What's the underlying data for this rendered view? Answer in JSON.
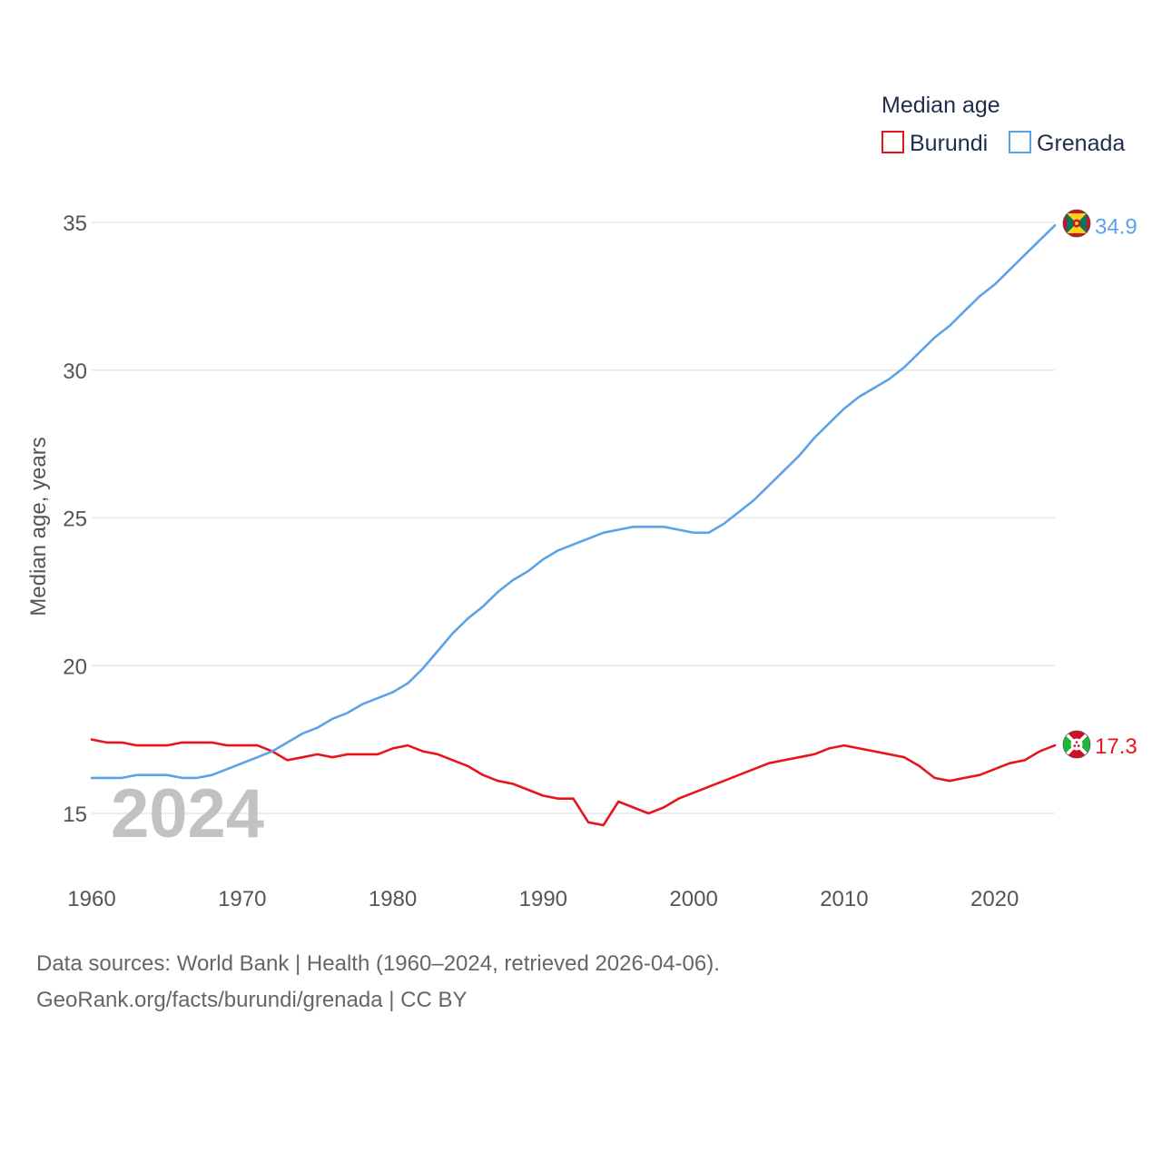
{
  "chart_data": {
    "type": "line",
    "title": "",
    "ylabel": "Median age, years",
    "xlabel": "",
    "xlim": [
      1960,
      2024
    ],
    "ylim": [
      13,
      36.5
    ],
    "x_ticks": [
      1960,
      1970,
      1980,
      1990,
      2000,
      2010,
      2020
    ],
    "y_ticks": [
      15,
      20,
      25,
      30,
      35
    ],
    "grid": true,
    "legend": {
      "title": "Median age",
      "position": "top-right"
    },
    "year_label": "2024",
    "x": [
      1960,
      1961,
      1962,
      1963,
      1964,
      1965,
      1966,
      1967,
      1968,
      1969,
      1970,
      1971,
      1972,
      1973,
      1974,
      1975,
      1976,
      1977,
      1978,
      1979,
      1980,
      1981,
      1982,
      1983,
      1984,
      1985,
      1986,
      1987,
      1988,
      1989,
      1990,
      1991,
      1992,
      1993,
      1994,
      1995,
      1996,
      1997,
      1998,
      1999,
      2000,
      2001,
      2002,
      2003,
      2004,
      2005,
      2006,
      2007,
      2008,
      2009,
      2010,
      2011,
      2012,
      2013,
      2014,
      2015,
      2016,
      2017,
      2018,
      2019,
      2020,
      2021,
      2022,
      2023,
      2024
    ],
    "series": [
      {
        "name": "Burundi",
        "color": "#e8141c",
        "end_label": "17.3",
        "values": [
          17.5,
          17.4,
          17.4,
          17.3,
          17.3,
          17.3,
          17.4,
          17.4,
          17.4,
          17.3,
          17.3,
          17.3,
          17.1,
          16.8,
          16.9,
          17.0,
          16.9,
          17.0,
          17.0,
          17.0,
          17.2,
          17.3,
          17.1,
          17.0,
          16.8,
          16.6,
          16.3,
          16.1,
          16.0,
          15.8,
          15.6,
          15.5,
          15.5,
          14.7,
          14.6,
          15.4,
          15.2,
          15.0,
          15.2,
          15.5,
          15.7,
          15.9,
          16.1,
          16.3,
          16.5,
          16.7,
          16.8,
          16.9,
          17.0,
          17.2,
          17.3,
          17.2,
          17.1,
          17.0,
          16.9,
          16.6,
          16.2,
          16.1,
          16.2,
          16.3,
          16.5,
          16.7,
          16.8,
          17.1,
          17.3
        ]
      },
      {
        "name": "Grenada",
        "color": "#5ba3e6",
        "end_label": "34.9",
        "values": [
          16.2,
          16.2,
          16.2,
          16.3,
          16.3,
          16.3,
          16.2,
          16.2,
          16.3,
          16.5,
          16.7,
          16.9,
          17.1,
          17.4,
          17.7,
          17.9,
          18.2,
          18.4,
          18.7,
          18.9,
          19.1,
          19.4,
          19.9,
          20.5,
          21.1,
          21.6,
          22.0,
          22.5,
          22.9,
          23.2,
          23.6,
          23.9,
          24.1,
          24.3,
          24.5,
          24.6,
          24.7,
          24.7,
          24.7,
          24.6,
          24.5,
          24.5,
          24.8,
          25.2,
          25.6,
          26.1,
          26.6,
          27.1,
          27.7,
          28.2,
          28.7,
          29.1,
          29.4,
          29.7,
          30.1,
          30.6,
          31.1,
          31.5,
          32.0,
          32.5,
          32.9,
          33.4,
          33.9,
          34.4,
          34.9
        ]
      }
    ]
  },
  "footer": {
    "line1": "Data sources: World Bank | Health (1960–2024, retrieved 2026-04-06).",
    "line2": "GeoRank.org/facts/burundi/grenada | CC BY"
  }
}
